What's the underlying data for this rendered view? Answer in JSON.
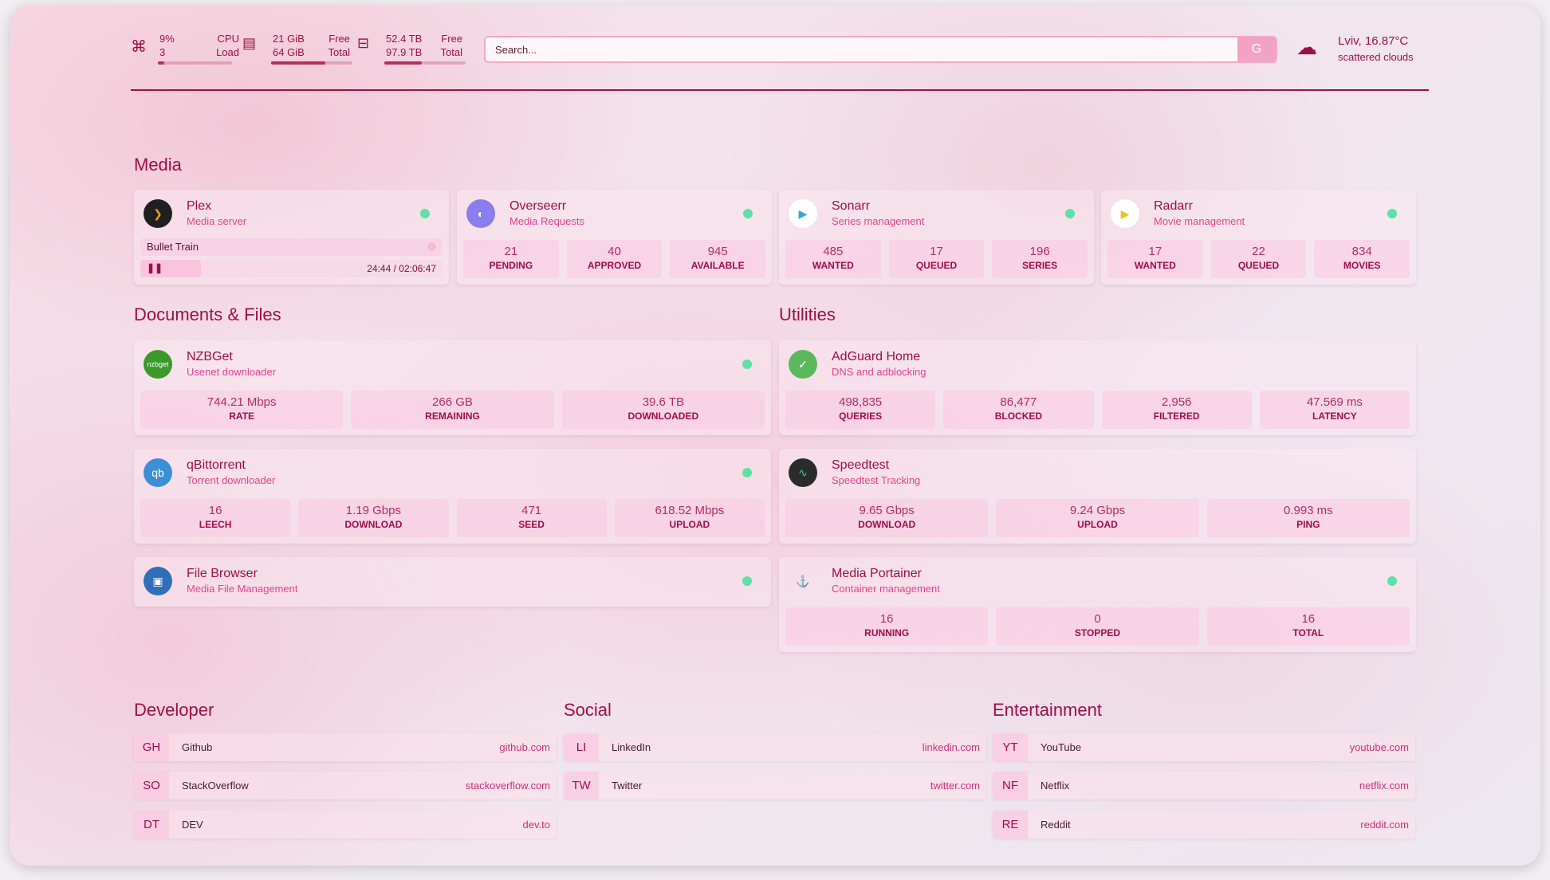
{
  "system": {
    "cpu": {
      "value": "9%",
      "value2": "3",
      "label": "CPU",
      "label2": "Load",
      "icon": "cpu-icon",
      "fill": 9
    },
    "memory": {
      "value": "21 GiB",
      "value2": "64 GiB",
      "label": "Free",
      "label2": "Total",
      "icon": "memory-icon",
      "fill": 67
    },
    "disk": {
      "value": "52.4 TB",
      "value2": "97.9 TB",
      "label": "Free",
      "label2": "Total",
      "icon": "disk-icon",
      "fill": 46
    }
  },
  "search": {
    "placeholder": "Search...",
    "engine_label": "G"
  },
  "weather": {
    "location_temp": "Lviv, 16.87°C",
    "condition": "scattered clouds",
    "icon": "cloud-sun-icon"
  },
  "sections": {
    "media": "Media",
    "docs": "Documents & Files",
    "utilities": "Utilities",
    "developer": "Developer",
    "social": "Social",
    "entertainment": "Entertainment"
  },
  "services": [
    {
      "id": "plex",
      "name": "Plex",
      "desc": "Media server",
      "logo": "❯",
      "logo_bg": "#1f1f1f",
      "logo_fg": "#e5a00d",
      "status": "online",
      "now_playing": {
        "title": "Bullet Train",
        "time": "24:44 / 02:06:47",
        "progress": 20
      }
    },
    {
      "id": "overseerr",
      "name": "Overseerr",
      "desc": "Media Requests",
      "logo": "◐",
      "logo_bg": "#8b7cf0",
      "status": "online",
      "stats": [
        {
          "v": "21",
          "l": "PENDING"
        },
        {
          "v": "40",
          "l": "APPROVED"
        },
        {
          "v": "945",
          "l": "AVAILABLE"
        }
      ]
    },
    {
      "id": "sonarr",
      "name": "Sonarr",
      "desc": "Series management",
      "logo": "▶",
      "logo_bg": "#ffffff",
      "logo_fg": "#2aa8e0",
      "status": "online",
      "stats": [
        {
          "v": "485",
          "l": "WANTED"
        },
        {
          "v": "17",
          "l": "QUEUED"
        },
        {
          "v": "196",
          "l": "SERIES"
        }
      ]
    },
    {
      "id": "radarr",
      "name": "Radarr",
      "desc": "Movie management",
      "logo": "▶",
      "logo_bg": "#ffffff",
      "logo_fg": "#f0c020",
      "status": "online",
      "stats": [
        {
          "v": "17",
          "l": "WANTED"
        },
        {
          "v": "22",
          "l": "QUEUED"
        },
        {
          "v": "834",
          "l": "MOVIES"
        }
      ]
    },
    {
      "id": "nzbget",
      "name": "NZBGet",
      "desc": "Usenet downloader",
      "logo": "nzbget",
      "logo_bg": "#3b9a2a",
      "status": "online",
      "stats": [
        {
          "v": "744.21 Mbps",
          "l": "RATE"
        },
        {
          "v": "266 GB",
          "l": "REMAINING"
        },
        {
          "v": "39.6 TB",
          "l": "DOWNLOADED"
        }
      ]
    },
    {
      "id": "qbittorrent",
      "name": "qBittorrent",
      "desc": "Torrent downloader",
      "logo": "qb",
      "logo_bg": "#3c8fd6",
      "status": "online",
      "stats": [
        {
          "v": "16",
          "l": "LEECH"
        },
        {
          "v": "1.19 Gbps",
          "l": "DOWNLOAD"
        },
        {
          "v": "471",
          "l": "SEED"
        },
        {
          "v": "618.52 Mbps",
          "l": "UPLOAD"
        }
      ]
    },
    {
      "id": "filebrowser",
      "name": "File Browser",
      "desc": "Media File Management",
      "logo": "▣",
      "logo_bg": "#2f6fb8",
      "status": "online"
    },
    {
      "id": "adguard",
      "name": "AdGuard Home",
      "desc": "DNS and adblocking",
      "logo": "✓",
      "logo_bg": "#5cb85c",
      "stats": [
        {
          "v": "498,835",
          "l": "QUERIES"
        },
        {
          "v": "86,477",
          "l": "BLOCKED"
        },
        {
          "v": "2,956",
          "l": "FILTERED"
        },
        {
          "v": "47.569 ms",
          "l": "LATENCY"
        }
      ]
    },
    {
      "id": "speedtest",
      "name": "Speedtest",
      "desc": "Speedtest Tracking",
      "logo": "∿",
      "logo_bg": "#2b2b2b",
      "logo_fg": "#35d07f",
      "stats": [
        {
          "v": "9.65 Gbps",
          "l": "DOWNLOAD"
        },
        {
          "v": "9.24 Gbps",
          "l": "UPLOAD"
        },
        {
          "v": "0.993 ms",
          "l": "PING"
        }
      ]
    },
    {
      "id": "portainer",
      "name": "Media Portainer",
      "desc": "Container management",
      "logo": "⚓",
      "logo_bg": "transparent",
      "logo_fg": "#2aa8e0",
      "status": "online",
      "stats": [
        {
          "v": "16",
          "l": "RUNNING"
        },
        {
          "v": "0",
          "l": "STOPPED"
        },
        {
          "v": "16",
          "l": "TOTAL"
        }
      ]
    }
  ],
  "bookmarks": {
    "developer": [
      {
        "abbr": "GH",
        "name": "Github",
        "url": "github.com"
      },
      {
        "abbr": "SO",
        "name": "StackOverflow",
        "url": "stackoverflow.com"
      },
      {
        "abbr": "DT",
        "name": "DEV",
        "url": "dev.to"
      }
    ],
    "social": [
      {
        "abbr": "LI",
        "name": "LinkedIn",
        "url": "linkedin.com"
      },
      {
        "abbr": "TW",
        "name": "Twitter",
        "url": "twitter.com"
      }
    ],
    "entertainment": [
      {
        "abbr": "YT",
        "name": "YouTube",
        "url": "youtube.com"
      },
      {
        "abbr": "NF",
        "name": "Netflix",
        "url": "netflix.com"
      },
      {
        "abbr": "RE",
        "name": "Reddit",
        "url": "reddit.com"
      }
    ]
  }
}
